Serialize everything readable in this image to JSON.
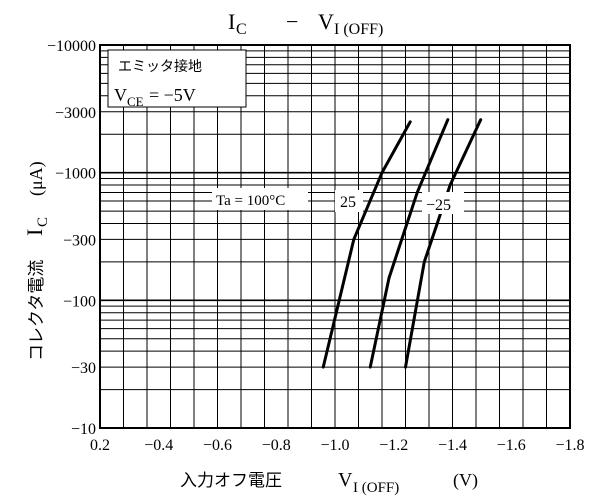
{
  "chart_data": {
    "type": "line",
    "title": "I_C - V_I(OFF)",
    "xlabel": "入力オフ電圧  V_I(OFF) (V)",
    "ylabel": "コレクタ電流  I_C (μA)",
    "x_ticks": [
      "0.2",
      "−0.4",
      "−0.6",
      "−0.8",
      "−1.0",
      "−1.2",
      "−1.4",
      "−1.6",
      "−1.8"
    ],
    "y_ticks": [
      "−10000",
      "−3000",
      "−1000",
      "−300",
      "−100",
      "−30",
      "−10"
    ],
    "xlim": [
      0.2,
      -1.8
    ],
    "ylim": [
      -10,
      -10000
    ],
    "y_scale": "log",
    "grid": true,
    "legend_box": [
      "エミッタ接地",
      "V_CE = −5V"
    ],
    "series": [
      {
        "name": "Ta = 100°C",
        "x": [
          -0.75,
          -0.88,
          -1.0,
          -1.12
        ],
        "y": [
          -30,
          -300,
          -1000,
          -2500
        ]
      },
      {
        "name": "25",
        "x": [
          -0.95,
          -1.03,
          -1.15,
          -1.28
        ],
        "y": [
          -30,
          -150,
          -700,
          -2600
        ]
      },
      {
        "name": "−25",
        "x": [
          -1.1,
          -1.18,
          -1.29,
          -1.42
        ],
        "y": [
          -30,
          -200,
          -800,
          -2600
        ]
      }
    ]
  }
}
